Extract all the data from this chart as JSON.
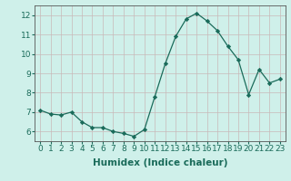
{
  "x": [
    0,
    1,
    2,
    3,
    4,
    5,
    6,
    7,
    8,
    9,
    10,
    11,
    12,
    13,
    14,
    15,
    16,
    17,
    18,
    19,
    20,
    21,
    22,
    23
  ],
  "y": [
    7.1,
    6.9,
    6.85,
    7.0,
    6.5,
    6.2,
    6.2,
    6.0,
    5.9,
    5.75,
    6.1,
    7.8,
    9.5,
    10.9,
    11.8,
    12.1,
    11.7,
    11.2,
    10.4,
    9.7,
    7.9,
    9.2,
    8.5,
    8.7
  ],
  "xlabel": "Humidex (Indice chaleur)",
  "ylim": [
    5.5,
    12.5
  ],
  "xlim": [
    -0.5,
    23.5
  ],
  "yticks": [
    6,
    7,
    8,
    9,
    10,
    11,
    12
  ],
  "xticks": [
    0,
    1,
    2,
    3,
    4,
    5,
    6,
    7,
    8,
    9,
    10,
    11,
    12,
    13,
    14,
    15,
    16,
    17,
    18,
    19,
    20,
    21,
    22,
    23
  ],
  "line_color": "#1a6b5a",
  "marker": "D",
  "bg_color": "#cff0ea",
  "grid_color_major": "#c8b8b8",
  "grid_color_minor": "#c8b8b8",
  "xlabel_fontsize": 7.5,
  "tick_fontsize": 6.5,
  "tick_color": "#1a6b5a",
  "xlabel_color": "#1a6b5a"
}
